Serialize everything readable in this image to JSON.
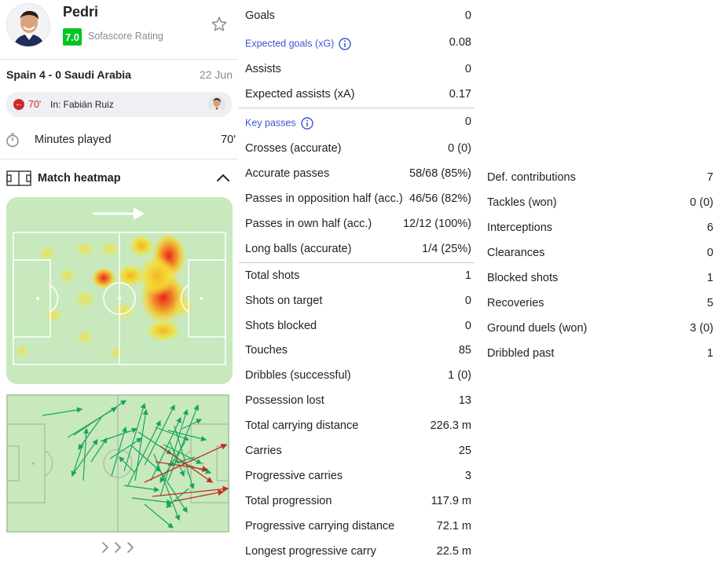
{
  "player": {
    "name": "Pedri",
    "rating": "7.0",
    "rating_label": "Sofascore Rating"
  },
  "match": {
    "title": "Spain 4 - 0 Saudi Arabia",
    "date": "22 Jun"
  },
  "substitution": {
    "minute": "70'",
    "text": "In: Fabián Ruiz"
  },
  "minutes": {
    "label": "Minutes played",
    "value": "70'"
  },
  "heatmap": {
    "title": "Match heatmap"
  },
  "colors": {
    "rating_green": "#00c424",
    "link_blue": "#3a56d4",
    "pitch": "#c7e9bd",
    "pass_success": "#1aa45c",
    "pass_fail": "#c62b20"
  },
  "stats_mid": [
    {
      "label": "Goals",
      "value": "0"
    },
    {
      "label": "Expected goals (xG)",
      "value": "0.08",
      "link": true
    },
    {
      "label": "Assists",
      "value": "0"
    },
    {
      "label": "Expected assists (xA)",
      "value": "0.17"
    },
    {
      "label": "Key passes",
      "value": "0",
      "link": true
    },
    {
      "label": "Crosses (accurate)",
      "value": "0 (0)"
    },
    {
      "label": "Accurate passes",
      "value": "58/68 (85%)"
    },
    {
      "label": "Passes in opposition half (acc.)",
      "value": "46/56 (82%)"
    },
    {
      "label": "Passes in own half (acc.)",
      "value": "12/12 (100%)"
    },
    {
      "label": "Long balls (accurate)",
      "value": "1/4 (25%)"
    },
    {
      "label": "Total shots",
      "value": "1"
    },
    {
      "label": "Shots on target",
      "value": "0"
    },
    {
      "label": "Shots blocked",
      "value": "0"
    },
    {
      "label": "Touches",
      "value": "85"
    },
    {
      "label": "Dribbles (successful)",
      "value": "1 (0)"
    },
    {
      "label": "Possession lost",
      "value": "13"
    },
    {
      "label": "Total carrying distance",
      "value": "226.3 m"
    },
    {
      "label": "Carries",
      "value": "25"
    },
    {
      "label": "Progressive carries",
      "value": "3"
    },
    {
      "label": "Total progression",
      "value": "117.9 m"
    },
    {
      "label": "Progressive carrying distance",
      "value": "72.1 m"
    },
    {
      "label": "Longest progressive carry",
      "value": "22.5 m"
    }
  ],
  "stats_right": [
    {
      "label": "Def. contributions",
      "value": "7"
    },
    {
      "label": "Tackles (won)",
      "value": "0 (0)"
    },
    {
      "label": "Interceptions",
      "value": "6"
    },
    {
      "label": "Clearances",
      "value": "0"
    },
    {
      "label": "Blocked shots",
      "value": "1"
    },
    {
      "label": "Recoveries",
      "value": "5"
    },
    {
      "label": "Ground duels (won)",
      "value": "3 (0)"
    },
    {
      "label": "Dribbled past",
      "value": "1"
    }
  ]
}
